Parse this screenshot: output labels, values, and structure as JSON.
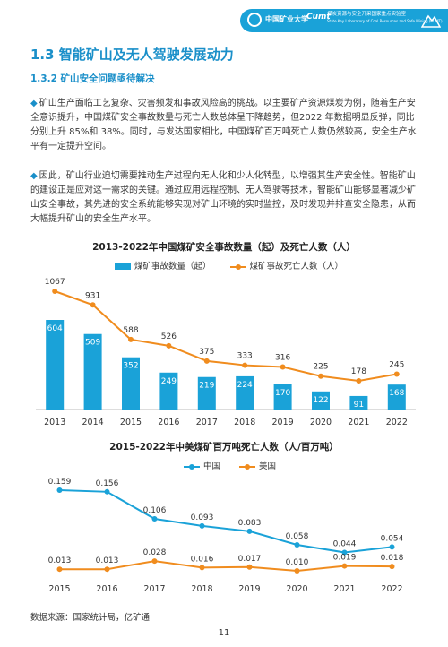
{
  "header": {
    "logo_text": "中国矿业大学",
    "lab_logo": "Cumt",
    "lab_name_cn": "煤炭资源与安全开采国家重点实验室",
    "lab_name_en": "State Key Laboratory of Coal Resources and Safe Mining (CUMT)",
    "bar_color": "#1aa2d8"
  },
  "section": {
    "title": "1.3 智能矿山及无人驾驶发展动力",
    "subtitle": "1.3.2 矿山安全问题亟待解决",
    "para1": "矿山生产面临工艺复杂、灾害频发和事故风险高的挑战。以主要矿产资源煤炭为例，随着生产安全意识提升，中国煤矿安全事故数量与死亡人数总体呈下降趋势，但2022 年数据明显反弹，同比分别上升 85%和 38%。同时，与发达国家相比，中国煤矿百万吨死亡人数仍然较高，安全生产水平有一定提升空间。",
    "para2": "因此，矿山行业迫切需要推动生产过程向无人化和少人化转型，以增强其生产安全性。智能矿山的建设正是应对这一需求的关键。通过应用远程控制、无人驾驶等技术，智能矿山能够显著减少矿山安全事故，其先进的安全系统能够实现对矿山环境的实时监控，及时发现并排查安全隐患，从而大幅提升矿山的安全生产水平。",
    "bullet": "◆"
  },
  "chart_data": [
    {
      "type": "bar+line",
      "title": "2013-2022年中国煤矿安全事故数量（起）及死亡人数（人）",
      "categories": [
        "2013",
        "2014",
        "2015",
        "2016",
        "2017",
        "2018",
        "2019",
        "2020",
        "2021",
        "2022"
      ],
      "series": [
        {
          "name": "煤矿事故数量（起）",
          "type": "bar",
          "color": "#1aa2d8",
          "values": [
            604,
            509,
            352,
            249,
            219,
            224,
            170,
            122,
            91,
            168
          ]
        },
        {
          "name": "煤矿事故死亡人数（人）",
          "type": "line",
          "color": "#f08c1e",
          "values": [
            1067,
            931,
            588,
            526,
            375,
            333,
            316,
            225,
            178,
            245
          ]
        }
      ],
      "legend": "top-center"
    },
    {
      "type": "line",
      "title": "2015-2022年中美煤矿百万吨死亡人数（人/百万吨）",
      "categories": [
        "2015",
        "2016",
        "2017",
        "2018",
        "2019",
        "2020",
        "2021",
        "2022"
      ],
      "series": [
        {
          "name": "中国",
          "color": "#1aa2d8",
          "values": [
            0.159,
            0.156,
            0.106,
            0.093,
            0.083,
            0.058,
            0.044,
            0.054
          ]
        },
        {
          "name": "美国",
          "color": "#f08c1e",
          "values": [
            0.013,
            0.013,
            0.028,
            0.016,
            0.017,
            0.01,
            0.019,
            0.018
          ]
        }
      ],
      "legend": "top-center"
    }
  ],
  "footer": {
    "source": "数据来源：国家统计局，亿矿通",
    "page_number": "11"
  }
}
